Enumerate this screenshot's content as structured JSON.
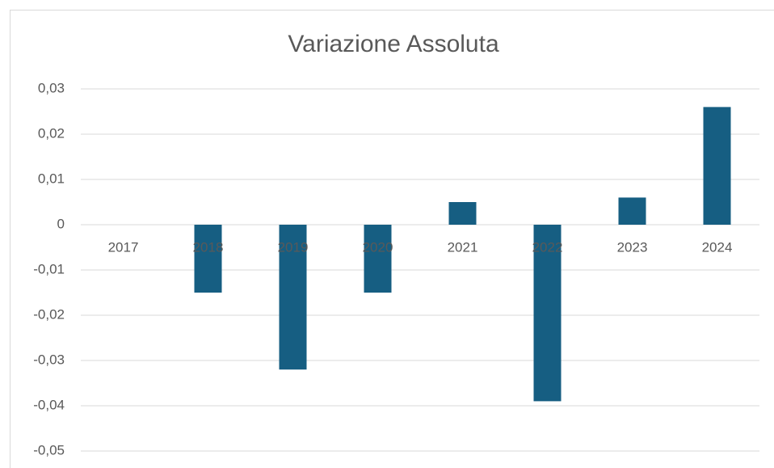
{
  "chart_data": {
    "type": "bar",
    "title": "Variazione Assoluta",
    "categories": [
      "2017",
      "2018",
      "2019",
      "2020",
      "2021",
      "2022",
      "2023",
      "2024"
    ],
    "values": [
      0,
      -0.015,
      -0.032,
      -0.015,
      0.005,
      -0.039,
      0.006,
      0.026
    ],
    "color": "#165e82",
    "ylim": [
      -0.05,
      0.03
    ],
    "yticks": [
      {
        "value": 0.03,
        "label": "0,03"
      },
      {
        "value": 0.02,
        "label": "0,02"
      },
      {
        "value": 0.01,
        "label": "0,01"
      },
      0,
      {
        "value": -0.01,
        "label": "-0,01"
      },
      {
        "value": -0.02,
        "label": "-0,02"
      },
      {
        "value": -0.03,
        "label": "-0,03"
      },
      {
        "value": -0.04,
        "label": "-0,04"
      },
      {
        "value": -0.05,
        "label": "-0,05"
      }
    ],
    "grid": true
  }
}
